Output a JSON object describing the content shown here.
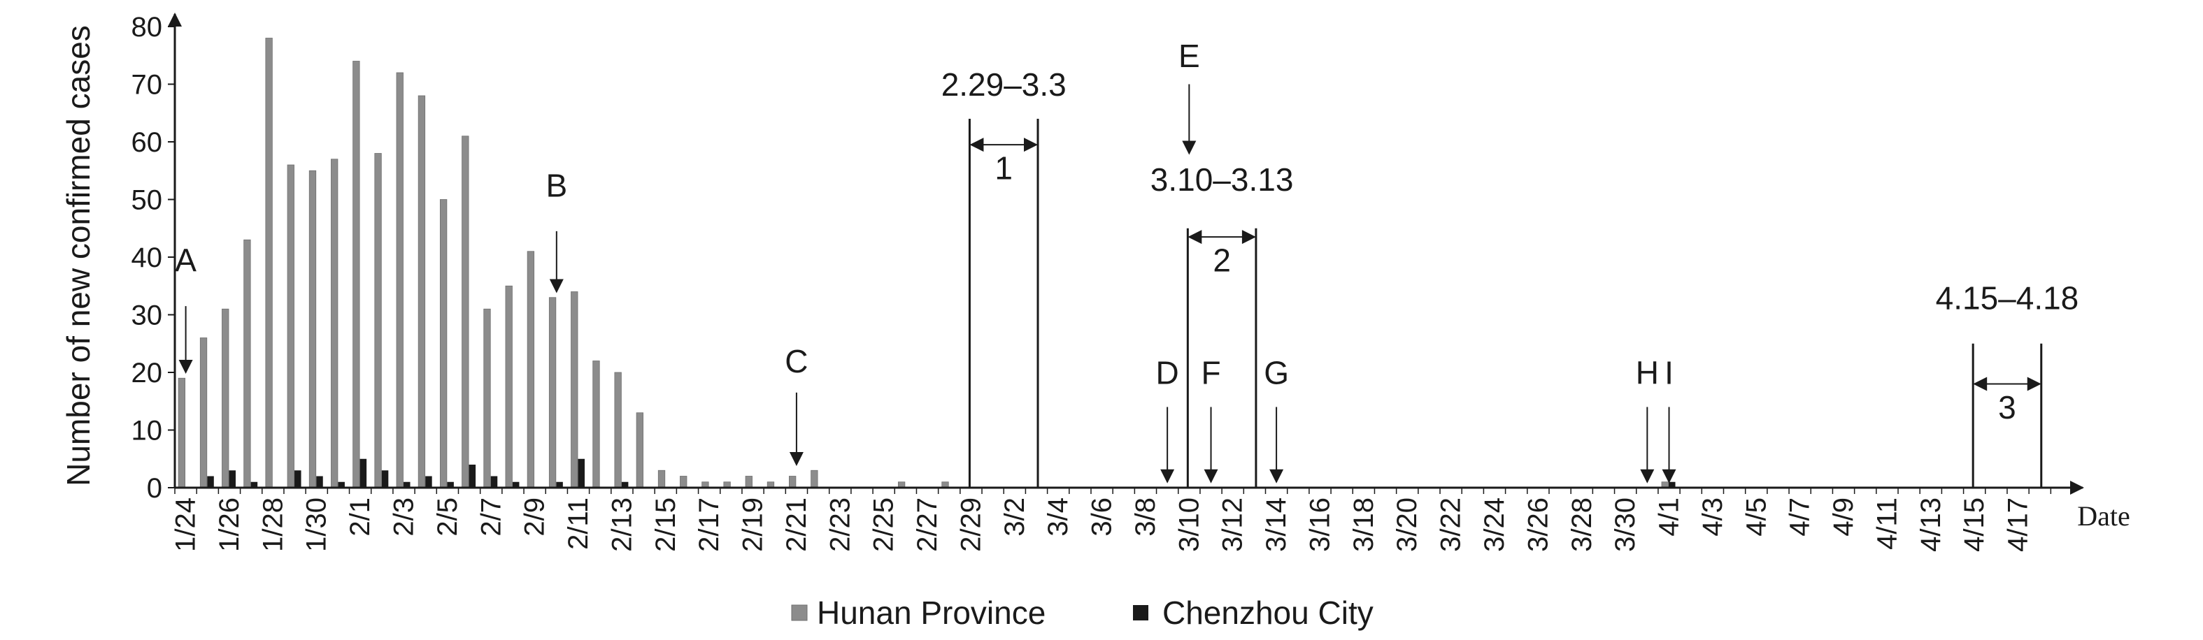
{
  "chart_data": {
    "type": "bar",
    "ylabel": "Number of new confirmed cases",
    "xlabel": "Date",
    "ylim": [
      0,
      80
    ],
    "yticks": [
      0,
      10,
      20,
      30,
      40,
      50,
      60,
      70,
      80
    ],
    "categories": [
      "1/24",
      "1/25",
      "1/26",
      "1/27",
      "1/28",
      "1/29",
      "1/30",
      "1/31",
      "2/1",
      "2/2",
      "2/3",
      "2/4",
      "2/5",
      "2/6",
      "2/7",
      "2/8",
      "2/9",
      "2/10",
      "2/11",
      "2/12",
      "2/13",
      "2/14",
      "2/15",
      "2/16",
      "2/17",
      "2/18",
      "2/19",
      "2/20",
      "2/21",
      "2/22",
      "2/23",
      "2/24",
      "2/25",
      "2/26",
      "2/27",
      "2/28",
      "2/29",
      "3/1",
      "3/2",
      "3/3",
      "3/4",
      "3/5",
      "3/6",
      "3/7",
      "3/8",
      "3/9",
      "3/10",
      "3/11",
      "3/12",
      "3/13",
      "3/14",
      "3/15",
      "3/16",
      "3/17",
      "3/18",
      "3/19",
      "3/20",
      "3/21",
      "3/22",
      "3/23",
      "3/24",
      "3/25",
      "3/26",
      "3/27",
      "3/28",
      "3/29",
      "3/30",
      "3/31",
      "4/1",
      "4/2",
      "4/3",
      "4/4",
      "4/5",
      "4/6",
      "4/7",
      "4/8",
      "4/9",
      "4/10",
      "4/11",
      "4/12",
      "4/13",
      "4/14",
      "4/15",
      "4/16",
      "4/17",
      "4/18"
    ],
    "tick_labels": [
      "1/24",
      "1/26",
      "1/28",
      "1/30",
      "2/1",
      "2/3",
      "2/5",
      "2/7",
      "2/9",
      "2/11",
      "2/13",
      "2/15",
      "2/17",
      "2/19",
      "2/21",
      "2/23",
      "2/25",
      "2/27",
      "2/29",
      "3/2",
      "3/4",
      "3/6",
      "3/8",
      "3/10",
      "3/12",
      "3/14",
      "3/16",
      "3/18",
      "3/20",
      "3/22",
      "3/24",
      "3/26",
      "3/28",
      "3/30",
      "4/1",
      "4/3",
      "4/5",
      "4/7",
      "4/9",
      "4/11",
      "4/13",
      "4/15",
      "4/17"
    ],
    "series": [
      {
        "name": "Hunan Province",
        "color": "#8c8c8c",
        "values": [
          19,
          26,
          31,
          43,
          78,
          56,
          55,
          57,
          74,
          58,
          72,
          68,
          50,
          61,
          31,
          35,
          41,
          33,
          34,
          22,
          20,
          13,
          3,
          2,
          1,
          1,
          2,
          1,
          2,
          3,
          0,
          0,
          0,
          1,
          0,
          1,
          0,
          0,
          0,
          0,
          0,
          0,
          0,
          0,
          0,
          0,
          0,
          0,
          0,
          0,
          0,
          0,
          0,
          0,
          0,
          0,
          0,
          0,
          0,
          0,
          0,
          0,
          0,
          0,
          0,
          0,
          0,
          0,
          1,
          0,
          0,
          0,
          0,
          0,
          0,
          0,
          0,
          0,
          0,
          0,
          0,
          0,
          0,
          0,
          0,
          0
        ]
      },
      {
        "name": "Chenzhou City",
        "color": "#1a1a1a",
        "values": [
          0,
          2,
          3,
          1,
          0,
          3,
          2,
          1,
          5,
          3,
          1,
          2,
          1,
          4,
          2,
          1,
          0,
          1,
          5,
          0,
          1,
          0,
          0,
          0,
          0,
          0,
          0,
          0,
          0,
          0,
          0,
          0,
          0,
          0,
          0,
          0,
          0,
          0,
          0,
          0,
          0,
          0,
          0,
          0,
          0,
          0,
          0,
          0,
          0,
          0,
          0,
          0,
          0,
          0,
          0,
          0,
          0,
          0,
          0,
          0,
          0,
          0,
          0,
          0,
          0,
          0,
          0,
          0,
          1,
          0,
          0,
          0,
          0,
          0,
          0,
          0,
          0,
          0,
          0,
          0,
          0,
          0,
          0,
          0,
          0,
          0
        ]
      }
    ],
    "event_markers": [
      {
        "label": "A",
        "date": "1/24",
        "label_value": 37.5,
        "arrow_top": 31.5,
        "arrow_tip": 20
      },
      {
        "label": "B",
        "date": "2/10",
        "label_value": 50.5,
        "arrow_top": 44.5,
        "arrow_tip": 34
      },
      {
        "label": "C",
        "date": "2/21",
        "label_value": 20,
        "arrow_top": 16.5,
        "arrow_tip": 4
      },
      {
        "label": "D",
        "date": "3/9",
        "label_value": 18,
        "arrow_top": 14,
        "arrow_tip": 1
      },
      {
        "label": "E",
        "date": "3/10",
        "label_value": 73,
        "arrow_top": 70,
        "arrow_tip": 58
      },
      {
        "label": "F",
        "date": "3/11",
        "label_value": 18,
        "arrow_top": 14,
        "arrow_tip": 1
      },
      {
        "label": "G",
        "date": "3/14",
        "label_value": 18,
        "arrow_top": 14,
        "arrow_tip": 1
      },
      {
        "label": "H",
        "date": "3/31",
        "label_value": 18,
        "arrow_top": 14,
        "arrow_tip": 1
      },
      {
        "label": "I",
        "date": "4/1",
        "label_value": 18,
        "arrow_top": 14,
        "arrow_tip": 1
      }
    ],
    "periods": [
      {
        "number": "1",
        "range_label": "2.29–3.3",
        "start": "2/29",
        "end": "3/3",
        "line_top": 64,
        "arrow_value": 59.5,
        "range_value": 68,
        "number_value": 53.5
      },
      {
        "number": "2",
        "range_label": "3.10–3.13",
        "start": "3/10",
        "end": "3/13",
        "line_top": 45,
        "arrow_value": 43.5,
        "range_value": 51.5,
        "number_value": 37.5
      },
      {
        "number": "3",
        "range_label": "4.15–4.18",
        "start": "4/15",
        "end": "4/18",
        "line_top": 25,
        "arrow_value": 18,
        "range_value": 31,
        "number_value": 12
      }
    ],
    "legend": {
      "position": "bottom-center"
    }
  }
}
